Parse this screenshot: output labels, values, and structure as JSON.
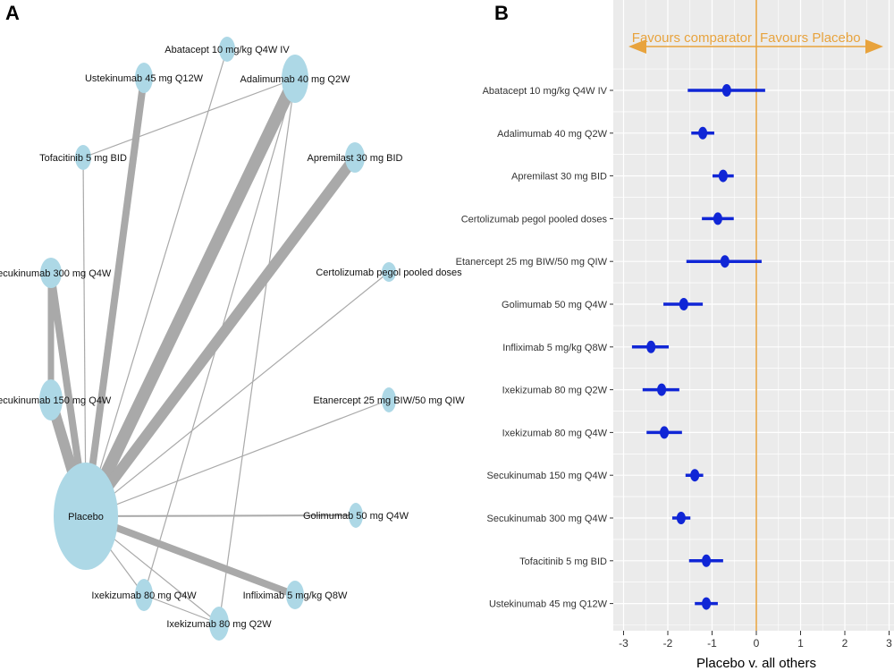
{
  "panels": {
    "a_label": "A",
    "b_label": "B"
  },
  "chart_data": [
    {
      "type": "network",
      "nodes": [
        "Placebo",
        "Abatacept 10 mg/kg Q4W IV",
        "Ustekinumab 45 mg Q12W",
        "Adalimumab 40 mg Q2W",
        "Tofacitinib 5 mg BID",
        "Apremilast 30 mg BID",
        "Secukinumab 300 mg Q4W",
        "Certolizumab pegol pooled doses",
        "Secukinumab 150 mg Q4W",
        "Etanercept 25 mg BIW/50 mg QIW",
        "Golimumab 50 mg Q4W",
        "Infliximab 5 mg/kg Q8W",
        "Ixekizumab 80 mg Q4W",
        "Ixekizumab 80 mg Q2W"
      ],
      "edges": [
        [
          "Placebo",
          "Ustekinumab 45 mg Q12W"
        ],
        [
          "Placebo",
          "Adalimumab 40 mg Q2W"
        ],
        [
          "Placebo",
          "Apremilast 30 mg BID"
        ],
        [
          "Placebo",
          "Secukinumab 300 mg Q4W"
        ],
        [
          "Placebo",
          "Secukinumab 150 mg Q4W"
        ],
        [
          "Placebo",
          "Infliximab 5 mg/kg Q8W"
        ],
        [
          "Placebo",
          "Abatacept 10 mg/kg Q4W IV"
        ],
        [
          "Placebo",
          "Tofacitinib 5 mg BID"
        ],
        [
          "Placebo",
          "Certolizumab pegol pooled doses"
        ],
        [
          "Placebo",
          "Etanercept 25 mg BIW/50 mg QIW"
        ],
        [
          "Placebo",
          "Golimumab 50 mg Q4W"
        ],
        [
          "Placebo",
          "Ixekizumab 80 mg Q4W"
        ],
        [
          "Placebo",
          "Ixekizumab 80 mg Q2W"
        ],
        [
          "Secukinumab 300 mg Q4W",
          "Secukinumab 150 mg Q4W"
        ],
        [
          "Adalimumab 40 mg Q2W",
          "Tofacitinib 5 mg BID"
        ],
        [
          "Adalimumab 40 mg Q2W",
          "Ixekizumab 80 mg Q4W"
        ],
        [
          "Adalimumab 40 mg Q2W",
          "Ixekizumab 80 mg Q2W"
        ],
        [
          "Ixekizumab 80 mg Q4W",
          "Ixekizumab 80 mg Q2W"
        ]
      ],
      "node_color": "#ADD8E6",
      "edge_color": "#A9A9A9"
    },
    {
      "type": "forest",
      "xlabel": "Placebo v. all others",
      "xlim": [
        -3,
        3
      ],
      "xticks": [
        "-3",
        "-2",
        "-1",
        "0",
        "1",
        "2",
        "3"
      ],
      "reference_line": 0,
      "annotation_left": "Favours comparator",
      "annotation_right": "Favours Placebo",
      "point_color": "#1026D6",
      "annotation_color": "#E8A33D",
      "grid": true,
      "rows": [
        {
          "label": "Abatacept 10 mg/kg Q4W IV",
          "est": -0.67,
          "lo": -1.55,
          "hi": 0.2
        },
        {
          "label": "Adalimumab 40 mg Q2W",
          "est": -1.21,
          "lo": -1.47,
          "hi": -0.95
        },
        {
          "label": "Apremilast 30 mg BID",
          "est": -0.75,
          "lo": -0.99,
          "hi": -0.51
        },
        {
          "label": "Certolizumab pegol pooled doses",
          "est": -0.87,
          "lo": -1.23,
          "hi": -0.51
        },
        {
          "label": "Etanercept 25 mg BIW/50 mg QIW",
          "est": -0.71,
          "lo": -1.58,
          "hi": 0.12
        },
        {
          "label": "Golimumab 50 mg Q4W",
          "est": -1.64,
          "lo": -2.1,
          "hi": -1.21
        },
        {
          "label": "Infliximab 5 mg/kg Q8W",
          "est": -2.38,
          "lo": -2.81,
          "hi": -1.98
        },
        {
          "label": "Ixekizumab 80 mg Q2W",
          "est": -2.14,
          "lo": -2.57,
          "hi": -1.74
        },
        {
          "label": "Ixekizumab 80 mg Q4W",
          "est": -2.08,
          "lo": -2.48,
          "hi": -1.68
        },
        {
          "label": "Secukinumab 150 mg Q4W",
          "est": -1.39,
          "lo": -1.6,
          "hi": -1.2
        },
        {
          "label": "Secukinumab 300 mg Q4W",
          "est": -1.7,
          "lo": -1.9,
          "hi": -1.49
        },
        {
          "label": "Tofacitinib 5 mg BID",
          "est": -1.13,
          "lo": -1.52,
          "hi": -0.75
        },
        {
          "label": "Ustekinumab 45 mg Q12W",
          "est": -1.13,
          "lo": -1.39,
          "hi": -0.87
        }
      ]
    }
  ]
}
